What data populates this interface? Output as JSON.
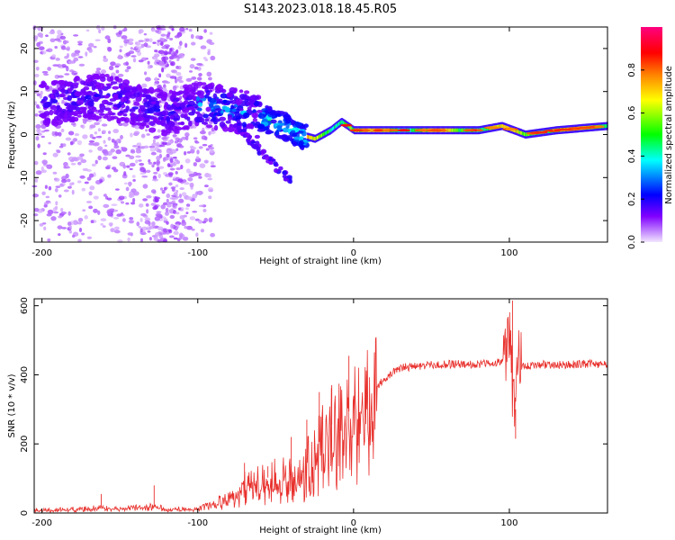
{
  "figure": {
    "title": "S143.2023.018.18.45.R05"
  },
  "chart_data": [
    {
      "type": "heatmap",
      "name": "frequency-spectrogram",
      "xlabel": "Height of straight line (km)",
      "ylabel": "Frequency (Hz)",
      "xlim": [
        -205,
        163
      ],
      "ylim": [
        -25,
        25
      ],
      "xticks": [
        -200,
        -100,
        0,
        100
      ],
      "yticks": [
        -20,
        -10,
        0,
        10,
        20
      ],
      "colorbar": {
        "label": "Normalized spectral amplitude",
        "range": [
          0.0,
          1.0
        ],
        "ticks": [
          0.0,
          0.2,
          0.4,
          0.6,
          0.8
        ],
        "colormap": [
          "#f2e6ff",
          "#8000ff",
          "#0000ff",
          "#00ffff",
          "#00ff00",
          "#ffff00",
          "#ff8000",
          "#ff0000",
          "#ff0080"
        ]
      },
      "ridge": {
        "x": [
          -200,
          -180,
          -160,
          -140,
          -120,
          -100,
          -80,
          -60,
          -45,
          -35,
          -25,
          -15,
          -8,
          0,
          20,
          40,
          60,
          80,
          95,
          110,
          130,
          163
        ],
        "y": [
          7,
          8,
          9,
          7,
          5,
          7,
          6,
          4,
          2,
          0,
          -1,
          1,
          3,
          1,
          1,
          1,
          1,
          1,
          2,
          0,
          1,
          2
        ]
      }
    },
    {
      "type": "line",
      "name": "snr-trace",
      "xlabel": "Height of straight line (km)",
      "ylabel": "SNR (10 * v/v)",
      "xlim": [
        -205,
        163
      ],
      "ylim": [
        0,
        620
      ],
      "xticks": [
        -200,
        -100,
        0,
        100
      ],
      "yticks": [
        0,
        200,
        400,
        600
      ],
      "color": "#e8302c",
      "series": [
        {
          "x": [
            -205,
            -190,
            -170,
            -160,
            -150,
            -140,
            -130,
            -120,
            -110,
            -100,
            -90,
            -80,
            -70,
            -60,
            -50,
            -40,
            -30,
            -20,
            -10,
            0,
            10,
            20,
            30,
            40,
            50,
            60,
            70,
            80,
            90,
            95,
            98,
            100,
            102,
            104,
            106,
            110,
            120,
            130,
            140,
            150,
            163
          ],
          "y": [
            8,
            10,
            15,
            18,
            15,
            18,
            22,
            14,
            12,
            15,
            30,
            60,
            85,
            95,
            110,
            120,
            150,
            220,
            280,
            300,
            340,
            390,
            420,
            425,
            428,
            430,
            432,
            430,
            435,
            440,
            460,
            520,
            380,
            300,
            420,
            425,
            430,
            428,
            430,
            432,
            430
          ]
        }
      ],
      "spikes": [
        {
          "x": -162,
          "y": 55
        },
        {
          "x": -128,
          "y": 80
        },
        {
          "x": -70,
          "y": 145
        },
        {
          "x": -55,
          "y": 135
        },
        {
          "x": -40,
          "y": 220
        },
        {
          "x": -30,
          "y": 270
        },
        {
          "x": -22,
          "y": 350
        },
        {
          "x": -14,
          "y": 370
        },
        {
          "x": -3,
          "y": 455
        },
        {
          "x": 102,
          "y": 615
        },
        {
          "x": 104,
          "y": 215
        }
      ]
    }
  ]
}
